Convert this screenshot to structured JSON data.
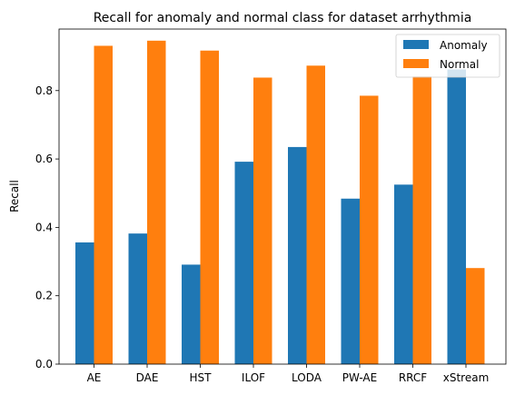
{
  "chart_data": {
    "type": "bar",
    "title": "Recall for anomaly and normal class for dataset arrhythmia",
    "xlabel": "",
    "ylabel": "Recall",
    "ylim": [
      0,
      0.98
    ],
    "yticks": [
      "0.0",
      "0.2",
      "0.4",
      "0.6",
      "0.8"
    ],
    "categories": [
      "AE",
      "DAE",
      "HST",
      "ILOF",
      "LODA",
      "PW-AE",
      "RRCF",
      "xStream"
    ],
    "series": [
      {
        "name": "Anomaly",
        "color": "#1f77b4",
        "values": [
          0.356,
          0.382,
          0.291,
          0.592,
          0.635,
          0.484,
          0.525,
          0.862
        ]
      },
      {
        "name": "Normal",
        "color": "#ff7f0e",
        "values": [
          0.931,
          0.946,
          0.917,
          0.838,
          0.873,
          0.785,
          0.842,
          0.281
        ]
      }
    ],
    "legend_position": "top-right",
    "grid": false
  }
}
